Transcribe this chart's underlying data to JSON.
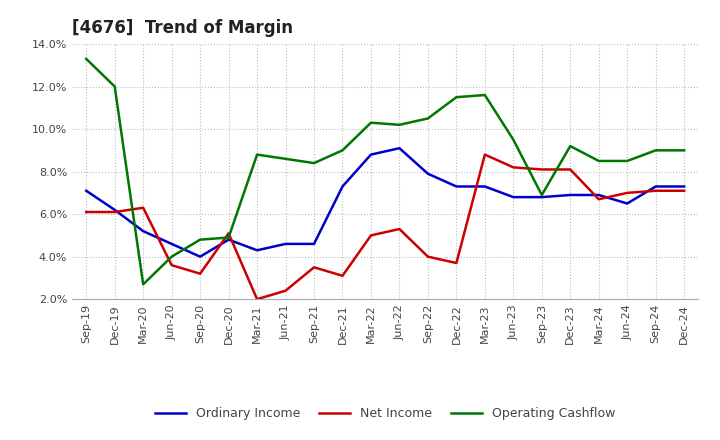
{
  "title": "[4676]  Trend of Margin",
  "x_labels": [
    "Sep-19",
    "Dec-19",
    "Mar-20",
    "Jun-20",
    "Sep-20",
    "Dec-20",
    "Mar-21",
    "Jun-21",
    "Sep-21",
    "Dec-21",
    "Mar-22",
    "Jun-22",
    "Sep-22",
    "Dec-22",
    "Mar-23",
    "Jun-23",
    "Sep-23",
    "Dec-23",
    "Mar-24",
    "Jun-24",
    "Sep-24",
    "Dec-24"
  ],
  "ordinary_income": [
    7.1,
    6.2,
    5.2,
    4.6,
    4.0,
    4.8,
    4.3,
    4.6,
    4.6,
    7.3,
    8.8,
    9.1,
    7.9,
    7.3,
    7.3,
    6.8,
    6.8,
    6.9,
    6.9,
    6.5,
    7.3,
    7.3
  ],
  "net_income": [
    6.1,
    6.1,
    6.3,
    3.6,
    3.2,
    5.1,
    2.0,
    2.4,
    3.5,
    3.1,
    5.0,
    5.3,
    4.0,
    3.7,
    8.8,
    8.2,
    8.1,
    8.1,
    6.7,
    7.0,
    7.1,
    7.1
  ],
  "operating_cashflow": [
    13.3,
    12.0,
    2.7,
    4.0,
    4.8,
    4.9,
    8.8,
    8.6,
    8.4,
    9.0,
    10.3,
    10.2,
    10.5,
    11.5,
    11.6,
    9.5,
    6.9,
    9.2,
    8.5,
    8.5,
    9.0,
    9.0
  ],
  "ylim": [
    2.0,
    14.0
  ],
  "yticks": [
    2.0,
    4.0,
    6.0,
    8.0,
    10.0,
    12.0,
    14.0
  ],
  "color_ordinary": "#0000cc",
  "color_net": "#cc0000",
  "color_cashflow": "#007700",
  "bg_color": "#ffffff",
  "plot_bg_color": "#ffffff",
  "grid_color": "#bbbbbb",
  "linewidth": 1.8,
  "legend_labels": [
    "Ordinary Income",
    "Net Income",
    "Operating Cashflow"
  ],
  "title_fontsize": 12,
  "tick_fontsize": 8,
  "legend_fontsize": 9
}
